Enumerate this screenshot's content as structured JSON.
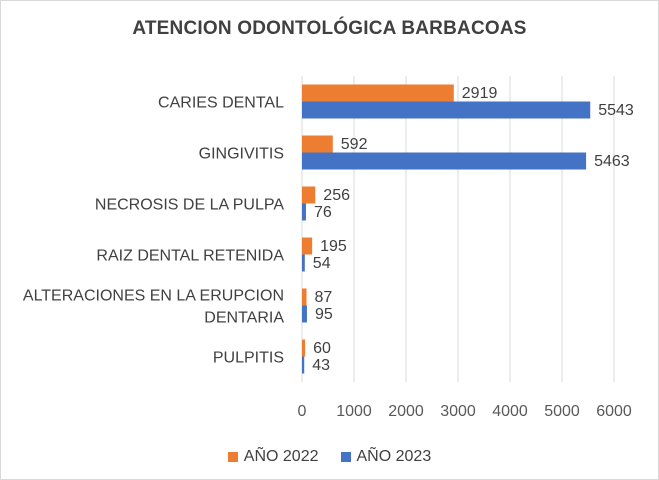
{
  "chart_data": {
    "type": "bar",
    "orientation": "horizontal",
    "title": "ATENCION ODONTOLÓGICA BARBACOAS",
    "categories": [
      [
        "CARIES DENTAL"
      ],
      [
        "GINGIVITIS"
      ],
      [
        "NECROSIS DE LA PULPA"
      ],
      [
        "RAIZ DENTAL RETENIDA"
      ],
      [
        "ALTERACIONES EN LA ERUPCION",
        "DENTARIA"
      ],
      [
        "PULPITIS"
      ]
    ],
    "series": [
      {
        "name": "AÑO 2022",
        "color": "#ed7d31",
        "values": [
          2919,
          592,
          256,
          195,
          87,
          60
        ]
      },
      {
        "name": "AÑO 2023",
        "color": "#4472c4",
        "values": [
          5543,
          5463,
          76,
          54,
          95,
          43
        ]
      }
    ],
    "xlim": [
      0,
      6000
    ],
    "xticks": [
      "0",
      "1000",
      "2000",
      "3000",
      "4000",
      "5000",
      "6000"
    ],
    "grid": true,
    "legend_position": "bottom"
  }
}
